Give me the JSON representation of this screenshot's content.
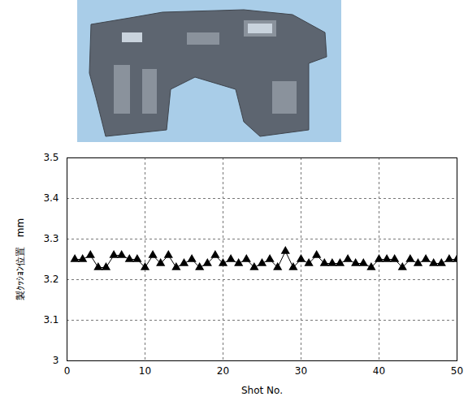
{
  "chart_data": {
    "type": "line",
    "x_label": "Shot No.",
    "y_label": "製ｸｯｼｮﾝ位置　mm",
    "x": [
      1,
      2,
      3,
      4,
      5,
      6,
      7,
      8,
      9,
      10,
      11,
      12,
      13,
      14,
      15,
      16,
      17,
      18,
      19,
      20,
      21,
      22,
      23,
      24,
      25,
      26,
      27,
      28,
      29,
      30,
      31,
      32,
      33,
      34,
      35,
      36,
      37,
      38,
      39,
      40,
      41,
      42,
      43,
      44,
      45,
      46,
      47,
      48,
      49,
      50
    ],
    "values": [
      3.25,
      3.25,
      3.26,
      3.23,
      3.23,
      3.26,
      3.26,
      3.25,
      3.25,
      3.23,
      3.26,
      3.24,
      3.26,
      3.23,
      3.24,
      3.25,
      3.23,
      3.24,
      3.26,
      3.24,
      3.25,
      3.24,
      3.25,
      3.23,
      3.24,
      3.25,
      3.23,
      3.27,
      3.23,
      3.25,
      3.24,
      3.26,
      3.24,
      3.24,
      3.24,
      3.25,
      3.24,
      3.24,
      3.23,
      3.25,
      3.25,
      3.25,
      3.23,
      3.25,
      3.24,
      3.25,
      3.24,
      3.24,
      3.25,
      3.25
    ],
    "color": "#000000",
    "marker": "triangle",
    "line_style": "solid",
    "xlim": [
      0,
      50
    ],
    "xticks": [
      0,
      10,
      20,
      30,
      40,
      50
    ],
    "ylim": [
      3,
      3.5
    ],
    "yticks": [
      3,
      3.1,
      3.2,
      3.3,
      3.4,
      3.5
    ],
    "grid": true
  }
}
